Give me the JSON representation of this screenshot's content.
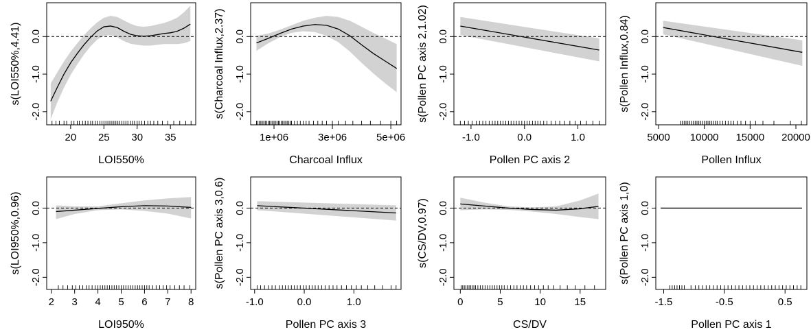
{
  "chart_data": [
    {
      "type": "line",
      "title": "",
      "xlabel": "LOI550%",
      "ylabel": "s(LOI550%,4.41)",
      "xlim": [
        16.4,
        38.8
      ],
      "ylim": [
        -2.35,
        0.9
      ],
      "xticks": [
        20,
        25,
        30,
        35
      ],
      "xtick_labels": [
        "20",
        "25",
        "30",
        "35"
      ],
      "yticks": [
        -2.0,
        -1.0,
        0.0
      ],
      "ytick_labels": [
        "-2.0",
        "-1.0",
        "0.0"
      ],
      "fit": {
        "x": [
          17,
          18,
          19,
          20,
          21,
          22,
          23,
          24,
          25,
          26,
          27,
          28,
          29,
          30,
          31,
          32,
          33,
          34,
          35,
          36,
          37,
          38
        ],
        "y": [
          -1.72,
          -1.35,
          -1.0,
          -0.7,
          -0.45,
          -0.22,
          -0.02,
          0.15,
          0.26,
          0.28,
          0.24,
          0.14,
          0.06,
          0.02,
          0.01,
          0.02,
          0.05,
          0.08,
          0.1,
          0.14,
          0.22,
          0.33
        ]
      },
      "ci_upper": [
        -1.25,
        -0.95,
        -0.66,
        -0.4,
        -0.18,
        0.04,
        0.22,
        0.38,
        0.5,
        0.55,
        0.52,
        0.43,
        0.34,
        0.28,
        0.26,
        0.28,
        0.32,
        0.36,
        0.42,
        0.5,
        0.64,
        0.82
      ],
      "ci_lower": [
        -2.2,
        -1.75,
        -1.36,
        -1.02,
        -0.74,
        -0.48,
        -0.26,
        -0.08,
        0.02,
        0.04,
        -0.02,
        -0.12,
        -0.19,
        -0.22,
        -0.24,
        -0.24,
        -0.22,
        -0.2,
        -0.2,
        -0.2,
        -0.18,
        -0.12
      ],
      "reference_line": 0,
      "rug": [
        17.2,
        17.8,
        18.3,
        19.0,
        19.4,
        20.1,
        20.5,
        21.0,
        21.3,
        21.8,
        22.2,
        22.6,
        23.0,
        23.3,
        23.7,
        24.0,
        24.4,
        24.7,
        25.0,
        25.3,
        25.6,
        25.9,
        26.2,
        26.5,
        26.8,
        27.1,
        27.4,
        27.7,
        28.0,
        28.3,
        28.6,
        29.0,
        29.3,
        29.6,
        30.0,
        30.3,
        30.7,
        31.1,
        31.6,
        32.0,
        32.5,
        33.1,
        33.8,
        34.6,
        35.5,
        36.4,
        37.3,
        38.1
      ]
    },
    {
      "type": "line",
      "title": "",
      "xlabel": "Charcoal Influx",
      "ylabel": "s(Charcoal Influx,2.37)",
      "xlim": [
        200000,
        5350000
      ],
      "ylim": [
        -2.35,
        0.9
      ],
      "xticks": [
        1000000,
        3000000,
        5000000
      ],
      "xtick_labels": [
        "1e+06",
        "3e+06",
        "5e+06"
      ],
      "yticks": [
        -2.0,
        -1.0,
        0.0
      ],
      "ytick_labels": [
        "-2.0",
        "-1.0",
        "0.0"
      ],
      "fit": {
        "x": [
          400000,
          800000,
          1200000,
          1600000,
          2000000,
          2400000,
          2800000,
          3200000,
          3600000,
          4000000,
          4400000,
          4800000,
          5200000
        ],
        "y": [
          -0.17,
          -0.05,
          0.08,
          0.2,
          0.28,
          0.32,
          0.3,
          0.2,
          0.02,
          -0.22,
          -0.45,
          -0.65,
          -0.85
        ]
      },
      "ci_upper": [
        0.02,
        0.08,
        0.18,
        0.3,
        0.42,
        0.5,
        0.55,
        0.52,
        0.42,
        0.26,
        0.1,
        -0.05,
        -0.2
      ],
      "ci_lower": [
        -0.38,
        -0.18,
        -0.02,
        0.1,
        0.14,
        0.12,
        0.02,
        -0.15,
        -0.4,
        -0.7,
        -0.98,
        -1.24,
        -1.48
      ],
      "reference_line": 0,
      "rug": [
        400000,
        450000,
        500000,
        550000,
        600000,
        650000,
        700000,
        750000,
        800000,
        850000,
        900000,
        950000,
        1000000,
        1050000,
        1100000,
        1150000,
        1200000,
        1250000,
        1300000,
        1350000,
        1400000,
        1450000,
        1500000,
        1550000,
        1600000,
        1700000,
        1800000,
        1900000,
        2000000,
        2100000,
        2200000,
        2350000,
        2500000,
        2650000,
        2800000,
        3000000,
        3200000,
        3450000,
        3700000,
        4000000,
        4300000,
        4650000,
        5000000,
        5200000
      ]
    },
    {
      "type": "line",
      "title": "",
      "xlabel": "Pollen PC axis 2",
      "ylabel": "s(Pollen PC axis 2,1.02)",
      "xlim": [
        -1.32,
        1.52
      ],
      "ylim": [
        -2.35,
        0.9
      ],
      "xticks": [
        -1.0,
        0.0,
        1.0
      ],
      "xtick_labels": [
        "-1.0",
        "0.0",
        "1.0"
      ],
      "yticks": [
        -2.0,
        -1.0,
        0.0
      ],
      "ytick_labels": [
        "-2.0",
        "-1.0",
        "0.0"
      ],
      "fit": {
        "x": [
          -1.2,
          1.4
        ],
        "y": [
          0.28,
          -0.36
        ]
      },
      "ci_upper": [
        0.52,
        -0.05
      ],
      "ci_lower": [
        0.04,
        -0.66
      ],
      "reference_line": 0,
      "rug": [
        -1.2,
        -1.12,
        -1.05,
        -0.98,
        -0.9,
        -0.84,
        -0.78,
        -0.72,
        -0.66,
        -0.6,
        -0.55,
        -0.5,
        -0.45,
        -0.4,
        -0.35,
        -0.3,
        -0.25,
        -0.2,
        -0.15,
        -0.1,
        -0.05,
        0.0,
        0.05,
        0.1,
        0.15,
        0.2,
        0.25,
        0.3,
        0.36,
        0.42,
        0.5,
        0.58,
        0.66,
        0.75,
        0.85,
        0.95,
        1.05,
        1.16,
        1.28,
        1.4
      ]
    },
    {
      "type": "line",
      "title": "",
      "xlabel": "Pollen Influx",
      "ylabel": "s(Pollen Influx,0.84)",
      "xlim": [
        4700,
        21200
      ],
      "ylim": [
        -2.35,
        0.9
      ],
      "xticks": [
        5000,
        10000,
        15000,
        20000
      ],
      "xtick_labels": [
        "5000",
        "10000",
        "15000",
        "20000"
      ],
      "yticks": [
        -2.0,
        -1.0,
        0.0
      ],
      "ytick_labels": [
        "-2.0",
        "-1.0",
        "0.0"
      ],
      "fit": {
        "x": [
          5500,
          20700
        ],
        "y": [
          0.24,
          -0.42
        ]
      },
      "ci_upper": [
        0.42,
        -0.1
      ],
      "ci_lower": [
        0.06,
        -0.78
      ],
      "reference_line": 0,
      "rug": [
        7400,
        7600,
        7800,
        8000,
        8200,
        8400,
        8600,
        8800,
        9000,
        9200,
        9400,
        9600,
        9800,
        10000,
        10200,
        10400,
        10600,
        10800,
        11000,
        11200,
        11400,
        11700,
        12000,
        12300,
        12600,
        12900,
        13200,
        13600,
        14000,
        14500,
        15000,
        15600,
        16400,
        17600,
        19400,
        20600
      ]
    },
    {
      "type": "line",
      "title": "",
      "xlabel": "LOI950%",
      "ylabel": "s(LOI950%,0.96)",
      "xlim": [
        1.8,
        8.2
      ],
      "ylim": [
        -2.35,
        0.9
      ],
      "xticks": [
        2,
        3,
        4,
        5,
        6,
        7,
        8
      ],
      "xtick_labels": [
        "2",
        "3",
        "4",
        "5",
        "6",
        "7",
        "8"
      ],
      "yticks": [
        -2.0,
        -1.0,
        0.0
      ],
      "ytick_labels": [
        "-2.0",
        "-1.0",
        "0.0"
      ],
      "fit": {
        "x": [
          2.2,
          3.0,
          4.0,
          5.0,
          6.0,
          7.0,
          8.0
        ],
        "y": [
          -0.1,
          -0.06,
          -0.01,
          0.04,
          0.07,
          0.06,
          0.02
        ]
      },
      "ci_upper": [
        0.08,
        0.05,
        0.05,
        0.14,
        0.22,
        0.28,
        0.32
      ],
      "ci_lower": [
        -0.32,
        -0.17,
        -0.06,
        -0.04,
        -0.08,
        -0.16,
        -0.3
      ],
      "reference_line": 0,
      "rug": [
        2.3,
        2.5,
        2.7,
        2.9,
        3.05,
        3.2,
        3.35,
        3.5,
        3.62,
        3.75,
        3.88,
        4.0,
        4.1,
        4.2,
        4.3,
        4.4,
        4.5,
        4.6,
        4.7,
        4.8,
        4.9,
        5.0,
        5.1,
        5.2,
        5.3,
        5.4,
        5.5,
        5.6,
        5.7,
        5.8,
        5.9,
        6.0,
        6.1,
        6.2,
        6.35,
        6.5,
        6.65,
        6.8,
        6.95,
        7.1,
        7.3,
        7.5,
        7.7,
        7.95
      ]
    },
    {
      "type": "line",
      "title": "",
      "xlabel": "Pollen PC axis 3",
      "ylabel": "s(Pollen PC axis 3,0.6)",
      "xlim": [
        -1.08,
        1.95
      ],
      "ylim": [
        -2.35,
        0.9
      ],
      "xticks": [
        -1.0,
        0.0,
        1.0
      ],
      "xtick_labels": [
        "-1.0",
        "0.0",
        "1.0"
      ],
      "yticks": [
        -2.0,
        -1.0,
        0.0
      ],
      "ytick_labels": [
        "-2.0",
        "-1.0",
        "0.0"
      ],
      "fit": {
        "x": [
          -0.95,
          1.85
        ],
        "y": [
          0.07,
          -0.14
        ]
      },
      "ci_upper": [
        0.2,
        0.08
      ],
      "ci_lower": [
        -0.06,
        -0.36
      ],
      "reference_line": 0,
      "rug": [
        -0.95,
        -0.88,
        -0.8,
        -0.72,
        -0.65,
        -0.58,
        -0.5,
        -0.44,
        -0.38,
        -0.32,
        -0.26,
        -0.2,
        -0.14,
        -0.08,
        -0.02,
        0.04,
        0.1,
        0.16,
        0.22,
        0.28,
        0.35,
        0.42,
        0.5,
        0.58,
        0.66,
        0.75,
        0.85,
        0.95,
        1.05,
        1.15,
        1.28,
        1.42,
        1.58,
        1.75,
        1.85
      ]
    },
    {
      "type": "line",
      "title": "",
      "xlabel": "CS/DV",
      "ylabel": "s(CS/DV,0.97)",
      "xlim": [
        -0.8,
        18.2
      ],
      "ylim": [
        -2.35,
        0.9
      ],
      "xticks": [
        0,
        5,
        10,
        15
      ],
      "xtick_labels": [
        "0",
        "5",
        "10",
        "15"
      ],
      "yticks": [
        -2.0,
        -1.0,
        0.0
      ],
      "ytick_labels": [
        "-2.0",
        "-1.0",
        "0.0"
      ],
      "fit": {
        "x": [
          0.0,
          3.0,
          6.0,
          9.0,
          12.0,
          15.0,
          17.3
        ],
        "y": [
          0.12,
          0.06,
          0.0,
          -0.04,
          -0.06,
          -0.02,
          0.05
        ]
      },
      "ci_upper": [
        0.3,
        0.16,
        0.05,
        0.02,
        0.05,
        0.22,
        0.42
      ],
      "ci_lower": [
        -0.06,
        -0.04,
        -0.05,
        -0.1,
        -0.17,
        -0.26,
        -0.32
      ],
      "reference_line": 0,
      "rug": [
        0.1,
        0.3,
        0.5,
        0.7,
        0.9,
        1.1,
        1.3,
        1.5,
        1.7,
        1.9,
        2.2,
        2.5,
        2.8,
        3.1,
        3.4,
        3.7,
        4.0,
        4.3,
        4.6,
        4.9,
        5.2,
        5.5,
        5.9,
        6.3,
        6.7,
        7.1,
        7.5,
        7.9,
        8.3,
        8.8,
        9.3,
        9.8,
        10.4,
        11.0,
        11.7,
        12.5,
        13.4,
        14.4,
        15.6,
        16.8
      ]
    },
    {
      "type": "line",
      "title": "",
      "xlabel": "Pollen PC axis 1",
      "ylabel": "s(Pollen PC axis 1,0)",
      "xlim": [
        -1.63,
        0.86
      ],
      "ylim": [
        -2.35,
        0.9
      ],
      "xticks": [
        -1.5,
        -0.5,
        0.5
      ],
      "xtick_labels": [
        "-1.5",
        "-0.5",
        "0.5"
      ],
      "yticks": [
        -2.0,
        -1.0,
        0.0
      ],
      "ytick_labels": [
        "-2.0",
        "-1.0",
        "0.0"
      ],
      "fit": {
        "x": [
          -1.55,
          0.78
        ],
        "y": [
          0.0,
          0.0
        ]
      },
      "ci_upper": [
        0.0,
        0.0
      ],
      "ci_lower": [
        0.0,
        0.0
      ],
      "reference_line": null,
      "rug": [
        -1.4,
        -1.36,
        -1.32,
        -1.28,
        -1.24,
        -1.2,
        -1.16,
        -1.05,
        -0.98,
        -0.92,
        -0.86,
        -0.8,
        -0.74,
        -0.68,
        -0.62,
        -0.56,
        -0.5,
        -0.44,
        -0.38,
        -0.32,
        -0.26,
        -0.2,
        -0.14,
        -0.08,
        -0.02,
        0.04,
        0.1,
        0.16,
        0.22,
        0.28,
        0.34,
        0.4,
        0.46,
        0.52,
        0.58,
        0.64,
        0.7,
        0.76
      ]
    }
  ]
}
